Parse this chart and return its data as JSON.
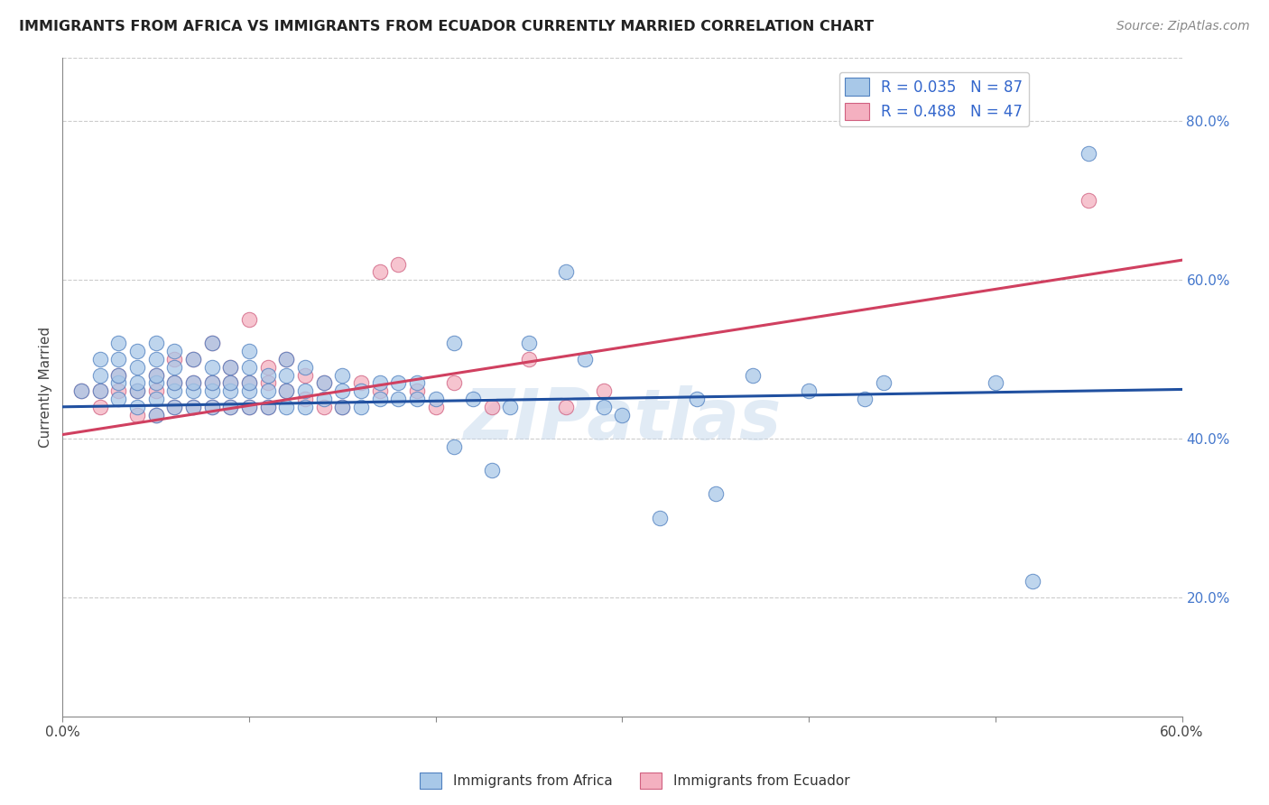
{
  "title": "IMMIGRANTS FROM AFRICA VS IMMIGRANTS FROM ECUADOR CURRENTLY MARRIED CORRELATION CHART",
  "source": "Source: ZipAtlas.com",
  "ylabel": "Currently Married",
  "right_yticks": [
    "80.0%",
    "60.0%",
    "40.0%",
    "20.0%"
  ],
  "right_ytick_vals": [
    0.8,
    0.6,
    0.4,
    0.2
  ],
  "xlim": [
    0.0,
    0.6
  ],
  "ylim": [
    0.05,
    0.88
  ],
  "legend_africa_R": 0.035,
  "legend_africa_N": 87,
  "legend_ecuador_R": 0.488,
  "legend_ecuador_N": 47,
  "africa_face_color": "#a8c8e8",
  "africa_edge_color": "#5080c0",
  "ecuador_face_color": "#f4b0c0",
  "ecuador_edge_color": "#d06080",
  "africa_line_color": "#2050a0",
  "ecuador_line_color": "#d04060",
  "watermark": "ZIPatlas",
  "africa_line_x0": 0.0,
  "africa_line_x1": 0.6,
  "africa_line_y0": 0.44,
  "africa_line_y1": 0.462,
  "ecuador_line_x0": 0.0,
  "ecuador_line_x1": 0.6,
  "ecuador_line_y0": 0.405,
  "ecuador_line_y1": 0.625,
  "africa_scatter_x": [
    0.01,
    0.02,
    0.02,
    0.02,
    0.03,
    0.03,
    0.03,
    0.03,
    0.03,
    0.04,
    0.04,
    0.04,
    0.04,
    0.04,
    0.05,
    0.05,
    0.05,
    0.05,
    0.05,
    0.05,
    0.06,
    0.06,
    0.06,
    0.06,
    0.06,
    0.07,
    0.07,
    0.07,
    0.07,
    0.08,
    0.08,
    0.08,
    0.08,
    0.08,
    0.09,
    0.09,
    0.09,
    0.09,
    0.1,
    0.1,
    0.1,
    0.1,
    0.1,
    0.11,
    0.11,
    0.11,
    0.12,
    0.12,
    0.12,
    0.12,
    0.13,
    0.13,
    0.13,
    0.14,
    0.14,
    0.15,
    0.15,
    0.15,
    0.16,
    0.16,
    0.17,
    0.17,
    0.18,
    0.18,
    0.19,
    0.19,
    0.2,
    0.21,
    0.21,
    0.22,
    0.23,
    0.24,
    0.25,
    0.27,
    0.28,
    0.29,
    0.3,
    0.32,
    0.34,
    0.35,
    0.37,
    0.4,
    0.43,
    0.44,
    0.5,
    0.52,
    0.55
  ],
  "africa_scatter_y": [
    0.46,
    0.46,
    0.48,
    0.5,
    0.45,
    0.47,
    0.48,
    0.5,
    0.52,
    0.44,
    0.46,
    0.47,
    0.49,
    0.51,
    0.43,
    0.45,
    0.47,
    0.48,
    0.5,
    0.52,
    0.44,
    0.46,
    0.47,
    0.49,
    0.51,
    0.44,
    0.46,
    0.47,
    0.5,
    0.44,
    0.46,
    0.47,
    0.49,
    0.52,
    0.44,
    0.46,
    0.47,
    0.49,
    0.44,
    0.46,
    0.47,
    0.49,
    0.51,
    0.44,
    0.46,
    0.48,
    0.44,
    0.46,
    0.48,
    0.5,
    0.44,
    0.46,
    0.49,
    0.45,
    0.47,
    0.44,
    0.46,
    0.48,
    0.44,
    0.46,
    0.45,
    0.47,
    0.45,
    0.47,
    0.45,
    0.47,
    0.45,
    0.39,
    0.52,
    0.45,
    0.36,
    0.44,
    0.52,
    0.61,
    0.5,
    0.44,
    0.43,
    0.3,
    0.45,
    0.33,
    0.48,
    0.46,
    0.45,
    0.47,
    0.47,
    0.22,
    0.76
  ],
  "ecuador_scatter_x": [
    0.01,
    0.02,
    0.02,
    0.03,
    0.03,
    0.04,
    0.04,
    0.05,
    0.05,
    0.05,
    0.06,
    0.06,
    0.06,
    0.07,
    0.07,
    0.07,
    0.08,
    0.08,
    0.08,
    0.09,
    0.09,
    0.09,
    0.1,
    0.1,
    0.1,
    0.11,
    0.11,
    0.11,
    0.12,
    0.12,
    0.13,
    0.13,
    0.14,
    0.14,
    0.15,
    0.16,
    0.17,
    0.17,
    0.18,
    0.19,
    0.2,
    0.21,
    0.23,
    0.25,
    0.27,
    0.29,
    0.55
  ],
  "ecuador_scatter_y": [
    0.46,
    0.44,
    0.46,
    0.46,
    0.48,
    0.43,
    0.46,
    0.43,
    0.46,
    0.48,
    0.44,
    0.47,
    0.5,
    0.44,
    0.47,
    0.5,
    0.44,
    0.47,
    0.52,
    0.44,
    0.47,
    0.49,
    0.44,
    0.47,
    0.55,
    0.44,
    0.47,
    0.49,
    0.46,
    0.5,
    0.45,
    0.48,
    0.44,
    0.47,
    0.44,
    0.47,
    0.46,
    0.61,
    0.62,
    0.46,
    0.44,
    0.47,
    0.44,
    0.5,
    0.44,
    0.46,
    0.7
  ]
}
